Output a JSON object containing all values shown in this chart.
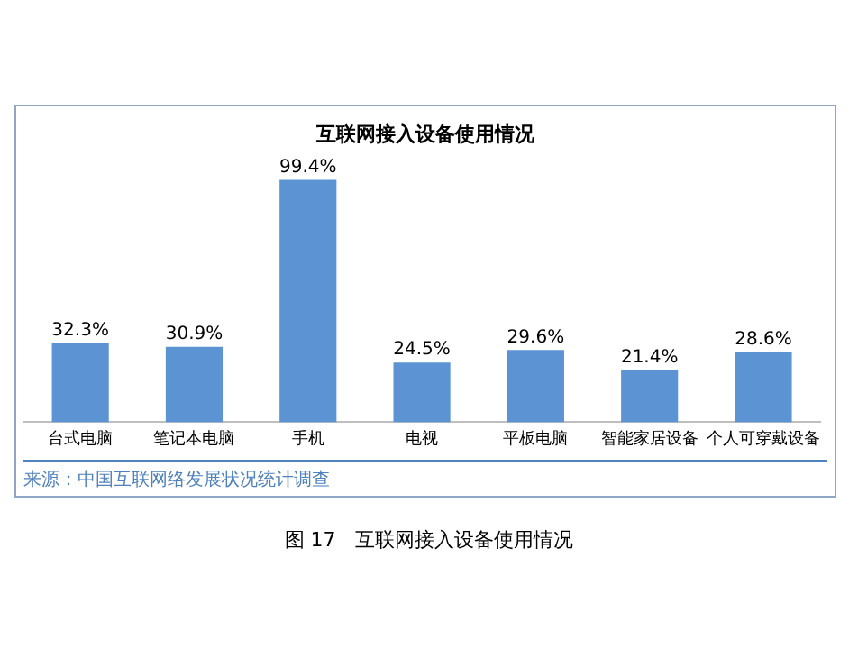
{
  "chart_data": {
    "type": "bar",
    "title": "互联网接入设备使用情况",
    "categories": [
      "台式电脑",
      "笔记本电脑",
      "手机",
      "电视",
      "平板电脑",
      "智能家居设备",
      "个人可穿戴设备"
    ],
    "values": [
      32.3,
      30.9,
      99.4,
      24.5,
      29.6,
      21.4,
      28.6
    ],
    "value_labels": [
      "32.3%",
      "30.9%",
      "99.4%",
      "24.5%",
      "29.6%",
      "21.4%",
      "28.6%"
    ],
    "color": "#5b93d3",
    "grid": false,
    "tick_labels": "x",
    "annotations": [
      "来源：中国互联网络发展状况统计调查",
      "图 17　互联网接入设备使用情况"
    ]
  }
}
